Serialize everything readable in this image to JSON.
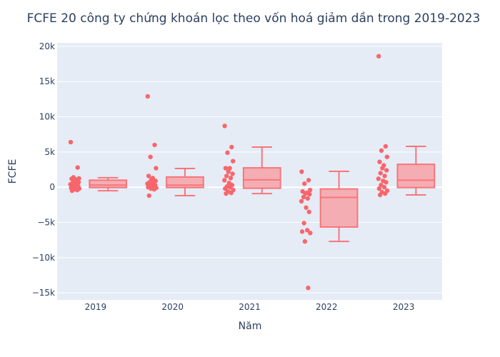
{
  "chart_data": {
    "type": "box",
    "title": "FCFE 20 công ty chứng khoán lọc theo vốn hoá giảm dần trong 2019-2023",
    "xlabel": "Năm",
    "ylabel": "FCFE",
    "categories": [
      "2019",
      "2020",
      "2021",
      "2022",
      "2023"
    ],
    "ylim": [
      -16000,
      20500
    ],
    "y_ticks": [
      -15000,
      -10000,
      -5000,
      0,
      5000,
      10000,
      15000,
      20000
    ],
    "y_tick_labels": [
      "−15k",
      "−10k",
      "−5k",
      "0",
      "5k",
      "10k",
      "15k",
      "20k"
    ],
    "grid": true,
    "legend": "none",
    "colors": {
      "fill": "#f4aeb3",
      "line": "#f8757a",
      "point": "#f8666b",
      "plot_bg": "#e5ecf6",
      "grid": "#ffffff"
    },
    "boxes": [
      {
        "category": "2019",
        "min": -500,
        "q1": -50,
        "median": 300,
        "q3": 1000,
        "max": 1350,
        "points": [
          6400,
          2800,
          1400,
          1250,
          1200,
          1100,
          900,
          700,
          600,
          500,
          400,
          300,
          200,
          100,
          0,
          -100,
          -200,
          -300,
          -400,
          -500
        ]
      },
      {
        "category": "2020",
        "min": -1200,
        "q1": -50,
        "median": 300,
        "q3": 1450,
        "max": 2650,
        "points": [
          12900,
          6000,
          4300,
          2700,
          1600,
          1300,
          1100,
          900,
          700,
          600,
          500,
          400,
          300,
          200,
          100,
          0,
          -100,
          -200,
          -300,
          -1200
        ]
      },
      {
        "category": "2021",
        "min": -900,
        "q1": -150,
        "median": 1050,
        "q3": 2750,
        "max": 5700,
        "points": [
          8700,
          5700,
          4900,
          3700,
          2700,
          2700,
          2200,
          1900,
          1600,
          1300,
          1000,
          600,
          300,
          100,
          0,
          -200,
          -400,
          -600,
          -800,
          -900
        ]
      },
      {
        "category": "2022",
        "min": -7700,
        "q1": -5650,
        "median": -1450,
        "q3": -250,
        "max": 2250,
        "points": [
          2200,
          1000,
          500,
          -400,
          -600,
          -800,
          -900,
          -1000,
          -1400,
          -1600,
          -2000,
          -2900,
          -3500,
          -5100,
          -6100,
          -6300,
          -6500,
          -7700,
          -14300
        ]
      },
      {
        "category": "2023",
        "min": -1100,
        "q1": -50,
        "median": 1000,
        "q3": 3250,
        "max": 5800,
        "points": [
          18600,
          5800,
          5200,
          4300,
          3600,
          3100,
          2700,
          2400,
          2000,
          1600,
          1200,
          900,
          700,
          300,
          0,
          -200,
          -500,
          -700,
          -900,
          -1100
        ]
      }
    ]
  }
}
